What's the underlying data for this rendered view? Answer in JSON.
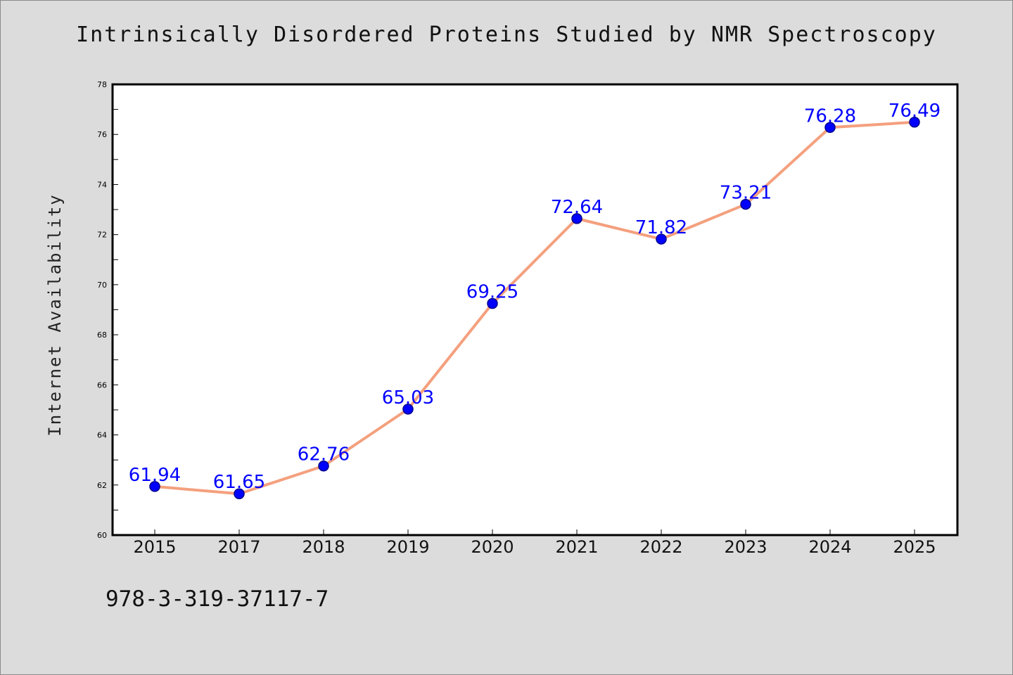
{
  "chart_data": {
    "type": "line",
    "title": "Intrinsically Disordered Proteins Studied by NMR Spectroscopy",
    "xlabel": "",
    "ylabel": "Internet Availability",
    "categories": [
      "2015",
      "2017",
      "2018",
      "2019",
      "2020",
      "2021",
      "2022",
      "2023",
      "2024",
      "2025"
    ],
    "series": [
      {
        "values": [
          61.94,
          61.65,
          62.76,
          65.03,
          69.25,
          72.64,
          71.82,
          73.21,
          76.28,
          76.49
        ],
        "labels": [
          "61.94",
          "61.65",
          "62.76",
          "65.03",
          "69.25",
          "72.64",
          "71.82",
          "73.21",
          "76.28",
          "76.49"
        ]
      }
    ],
    "ylim": [
      60,
      78
    ],
    "yticks": [
      "60",
      "62",
      "64",
      "66",
      "68",
      "70",
      "72",
      "74",
      "76",
      "78"
    ],
    "grid": false,
    "colors": {
      "line": "#f4a07e",
      "marker": "#0000ff",
      "marker_edge": "#00008b",
      "data_label": "#0000ff",
      "plot_background": "#ffffff",
      "figure_background": "#dcdcdc"
    }
  },
  "footer": {
    "isbn": "978-3-319-37117-7"
  }
}
